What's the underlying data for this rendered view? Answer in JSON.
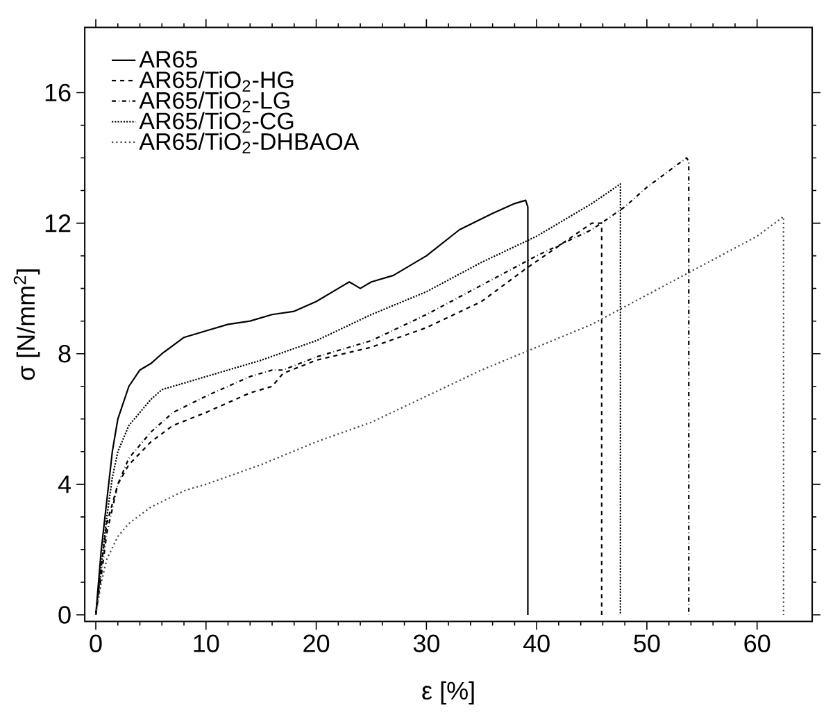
{
  "chart_data": {
    "type": "line",
    "xlabel": "ε [%]",
    "ylabel": "σ [N/mm$^{2}$]",
    "xlim": [
      -1,
      65
    ],
    "ylim": [
      -0.2,
      18
    ],
    "xticks": [
      0,
      10,
      20,
      30,
      40,
      50,
      60
    ],
    "yticks": [
      0,
      4,
      8,
      12,
      16
    ],
    "legend": "top left",
    "grid": false,
    "marker": "none",
    "series": [
      {
        "name": "AR65",
        "color": "#000000",
        "line_style": "solid",
        "x": [
          0,
          0.5,
          1,
          1.5,
          2,
          3,
          4,
          5,
          6,
          8,
          10,
          12,
          14,
          16,
          18,
          20,
          22,
          23,
          24,
          25,
          27,
          30,
          33,
          36,
          38,
          39,
          39.2,
          39.2
        ],
        "values": [
          0,
          2,
          3.5,
          5,
          6,
          7,
          7.5,
          7.7,
          8,
          8.5,
          8.7,
          8.9,
          9.0,
          9.2,
          9.3,
          9.6,
          10,
          10.2,
          10,
          10.2,
          10.4,
          11,
          11.8,
          12.3,
          12.6,
          12.7,
          12.5,
          0
        ]
      },
      {
        "name": "AR65/TiO$_{2}$-HG",
        "color": "#000000",
        "line_style": "dashed",
        "x": [
          0,
          0.5,
          1,
          2,
          3,
          5,
          7,
          10,
          14,
          16,
          17,
          20,
          25,
          30,
          35,
          39,
          42,
          45,
          45.9,
          45.9
        ],
        "values": [
          0,
          1.5,
          2.8,
          4,
          4.6,
          5.3,
          5.8,
          6.2,
          6.8,
          7.0,
          7.4,
          7.8,
          8.2,
          8.8,
          9.6,
          10.6,
          11.3,
          12.0,
          12.0,
          0
        ]
      },
      {
        "name": "AR65/TiO$_{2}$-LG",
        "color": "#000000",
        "line_style": "dashdot",
        "x": [
          0,
          0.5,
          1,
          2,
          3,
          5,
          7,
          10,
          14,
          16,
          17,
          20,
          25,
          30,
          35,
          40,
          45,
          48,
          50,
          53.6,
          53.8,
          53.8
        ],
        "values": [
          0,
          1.2,
          2.5,
          4,
          4.8,
          5.6,
          6.2,
          6.7,
          7.3,
          7.5,
          7.5,
          7.9,
          8.4,
          9.2,
          10.1,
          11,
          11.8,
          12.5,
          13.1,
          14,
          13.9,
          0
        ]
      },
      {
        "name": "AR65/TiO$_{2}$-CG",
        "color": "#000000",
        "line_style": "densely dotted",
        "x": [
          0,
          0.5,
          1,
          1.5,
          2,
          3,
          4,
          5,
          6,
          8,
          10,
          12,
          15,
          20,
          25,
          30,
          35,
          40,
          45,
          47.6,
          47.6
        ],
        "values": [
          0,
          1.5,
          3,
          4.2,
          5,
          5.8,
          6.2,
          6.6,
          6.9,
          7.1,
          7.3,
          7.5,
          7.8,
          8.4,
          9.2,
          9.9,
          10.8,
          11.6,
          12.6,
          13.2,
          0
        ]
      },
      {
        "name": "AR65/TiO$_{2}$-DHBAOA",
        "color": "#444444",
        "line_style": "dotted",
        "x": [
          0,
          0.5,
          1,
          2,
          3,
          5,
          8,
          10,
          15,
          20,
          25,
          30,
          35,
          40,
          45,
          50,
          55,
          60,
          62.4,
          62.4
        ],
        "values": [
          0,
          1,
          1.7,
          2.4,
          2.8,
          3.3,
          3.8,
          4.0,
          4.6,
          5.3,
          5.9,
          6.7,
          7.5,
          8.2,
          8.9,
          9.8,
          10.7,
          11.6,
          12.2,
          0
        ]
      }
    ]
  }
}
